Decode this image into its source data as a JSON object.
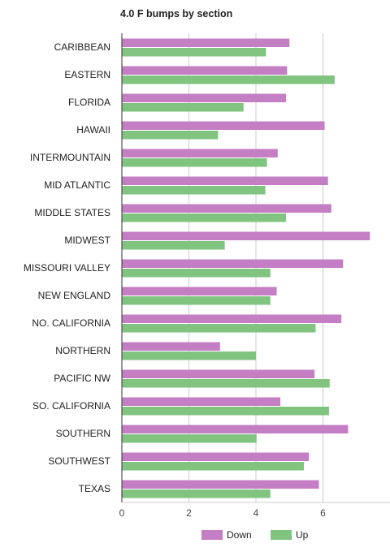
{
  "chart_data": {
    "type": "bar",
    "orientation": "horizontal",
    "title": "4.0 F bumps by section",
    "xlabel": "",
    "ylabel": "",
    "xlim": [
      0,
      8
    ],
    "xticks": [
      0,
      2,
      4,
      6
    ],
    "grid": true,
    "legend": "bottom",
    "categories": [
      "CARIBBEAN",
      "EASTERN",
      "FLORIDA",
      "HAWAII",
      "INTERMOUNTAIN",
      "MID ATLANTIC",
      "MIDDLE STATES",
      "MIDWEST",
      "MISSOURI VALLEY",
      "NEW ENGLAND",
      "NO. CALIFORNIA",
      "NORTHERN",
      "PACIFIC NW",
      "SO. CALIFORNIA",
      "SOUTHERN",
      "SOUTHWEST",
      "TEXAS"
    ],
    "series": [
      {
        "name": "Down",
        "color": "#c47fc4",
        "values": [
          5.0,
          4.93,
          4.9,
          6.05,
          4.65,
          6.15,
          6.25,
          7.4,
          6.6,
          4.62,
          6.55,
          2.93,
          5.75,
          4.73,
          6.75,
          5.58,
          5.88
        ]
      },
      {
        "name": "Up",
        "color": "#80c480",
        "values": [
          4.3,
          6.35,
          3.63,
          2.87,
          4.33,
          4.28,
          4.9,
          3.07,
          4.43,
          4.43,
          5.78,
          4.0,
          6.2,
          6.18,
          4.02,
          5.43,
          4.43
        ]
      }
    ]
  }
}
